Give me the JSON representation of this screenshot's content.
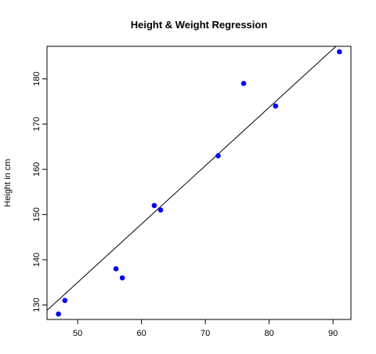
{
  "chart_data": {
    "type": "scatter",
    "title": "Height & Weight Regression",
    "xlabel": "",
    "ylabel": "Height in cm",
    "xlim": [
      45.2,
      92.8
    ],
    "ylim": [
      126.8,
      187.2
    ],
    "xticks": [
      50,
      60,
      70,
      80,
      90
    ],
    "yticks": [
      130,
      140,
      150,
      160,
      170,
      180
    ],
    "grid": false,
    "legend": "none",
    "point_color": "#0000ff",
    "line_color": "#000000",
    "points": [
      {
        "x": 47,
        "y": 128
      },
      {
        "x": 48,
        "y": 131
      },
      {
        "x": 56,
        "y": 138
      },
      {
        "x": 57,
        "y": 136
      },
      {
        "x": 62,
        "y": 152
      },
      {
        "x": 63,
        "y": 151
      },
      {
        "x": 72,
        "y": 163
      },
      {
        "x": 76,
        "y": 179
      },
      {
        "x": 81,
        "y": 174
      },
      {
        "x": 91,
        "y": 186
      }
    ],
    "regression": {
      "intercept": 70.5,
      "slope": 1.29
    }
  }
}
